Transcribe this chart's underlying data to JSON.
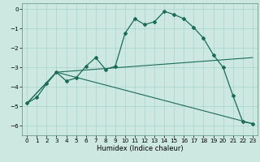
{
  "xlabel": "Humidex (Indice chaleur)",
  "background_color": "#cde8e0",
  "line_color": "#1a6b58",
  "xlim": [
    -0.5,
    23.5
  ],
  "ylim": [
    -6.5,
    0.3
  ],
  "yticks": [
    0,
    -1,
    -2,
    -3,
    -4,
    -5,
    -6
  ],
  "xticks": [
    0,
    1,
    2,
    3,
    4,
    5,
    6,
    7,
    8,
    9,
    10,
    11,
    12,
    13,
    14,
    15,
    16,
    17,
    18,
    19,
    20,
    21,
    22,
    23
  ],
  "line1_x": [
    0,
    1,
    2,
    3,
    4,
    5,
    6,
    7,
    8,
    9,
    10,
    11,
    12,
    13,
    14,
    15,
    16,
    17,
    18,
    19,
    20,
    21,
    22,
    23
  ],
  "line1_y": [
    -4.85,
    -4.55,
    -3.85,
    -3.25,
    -3.7,
    -3.55,
    -2.95,
    -2.5,
    -3.1,
    -2.95,
    -1.25,
    -0.5,
    -0.8,
    -0.65,
    -0.12,
    -0.28,
    -0.5,
    -0.95,
    -1.5,
    -2.35,
    -3.0,
    -4.45,
    -5.8,
    -5.9
  ],
  "line2_x": [
    0,
    3,
    23
  ],
  "line2_y": [
    -4.85,
    -3.25,
    -2.5
  ],
  "line3_x": [
    0,
    3,
    23
  ],
  "line3_y": [
    -4.85,
    -3.25,
    -5.9
  ],
  "xlabel_fontsize": 6.0,
  "tick_fontsize": 5.2
}
